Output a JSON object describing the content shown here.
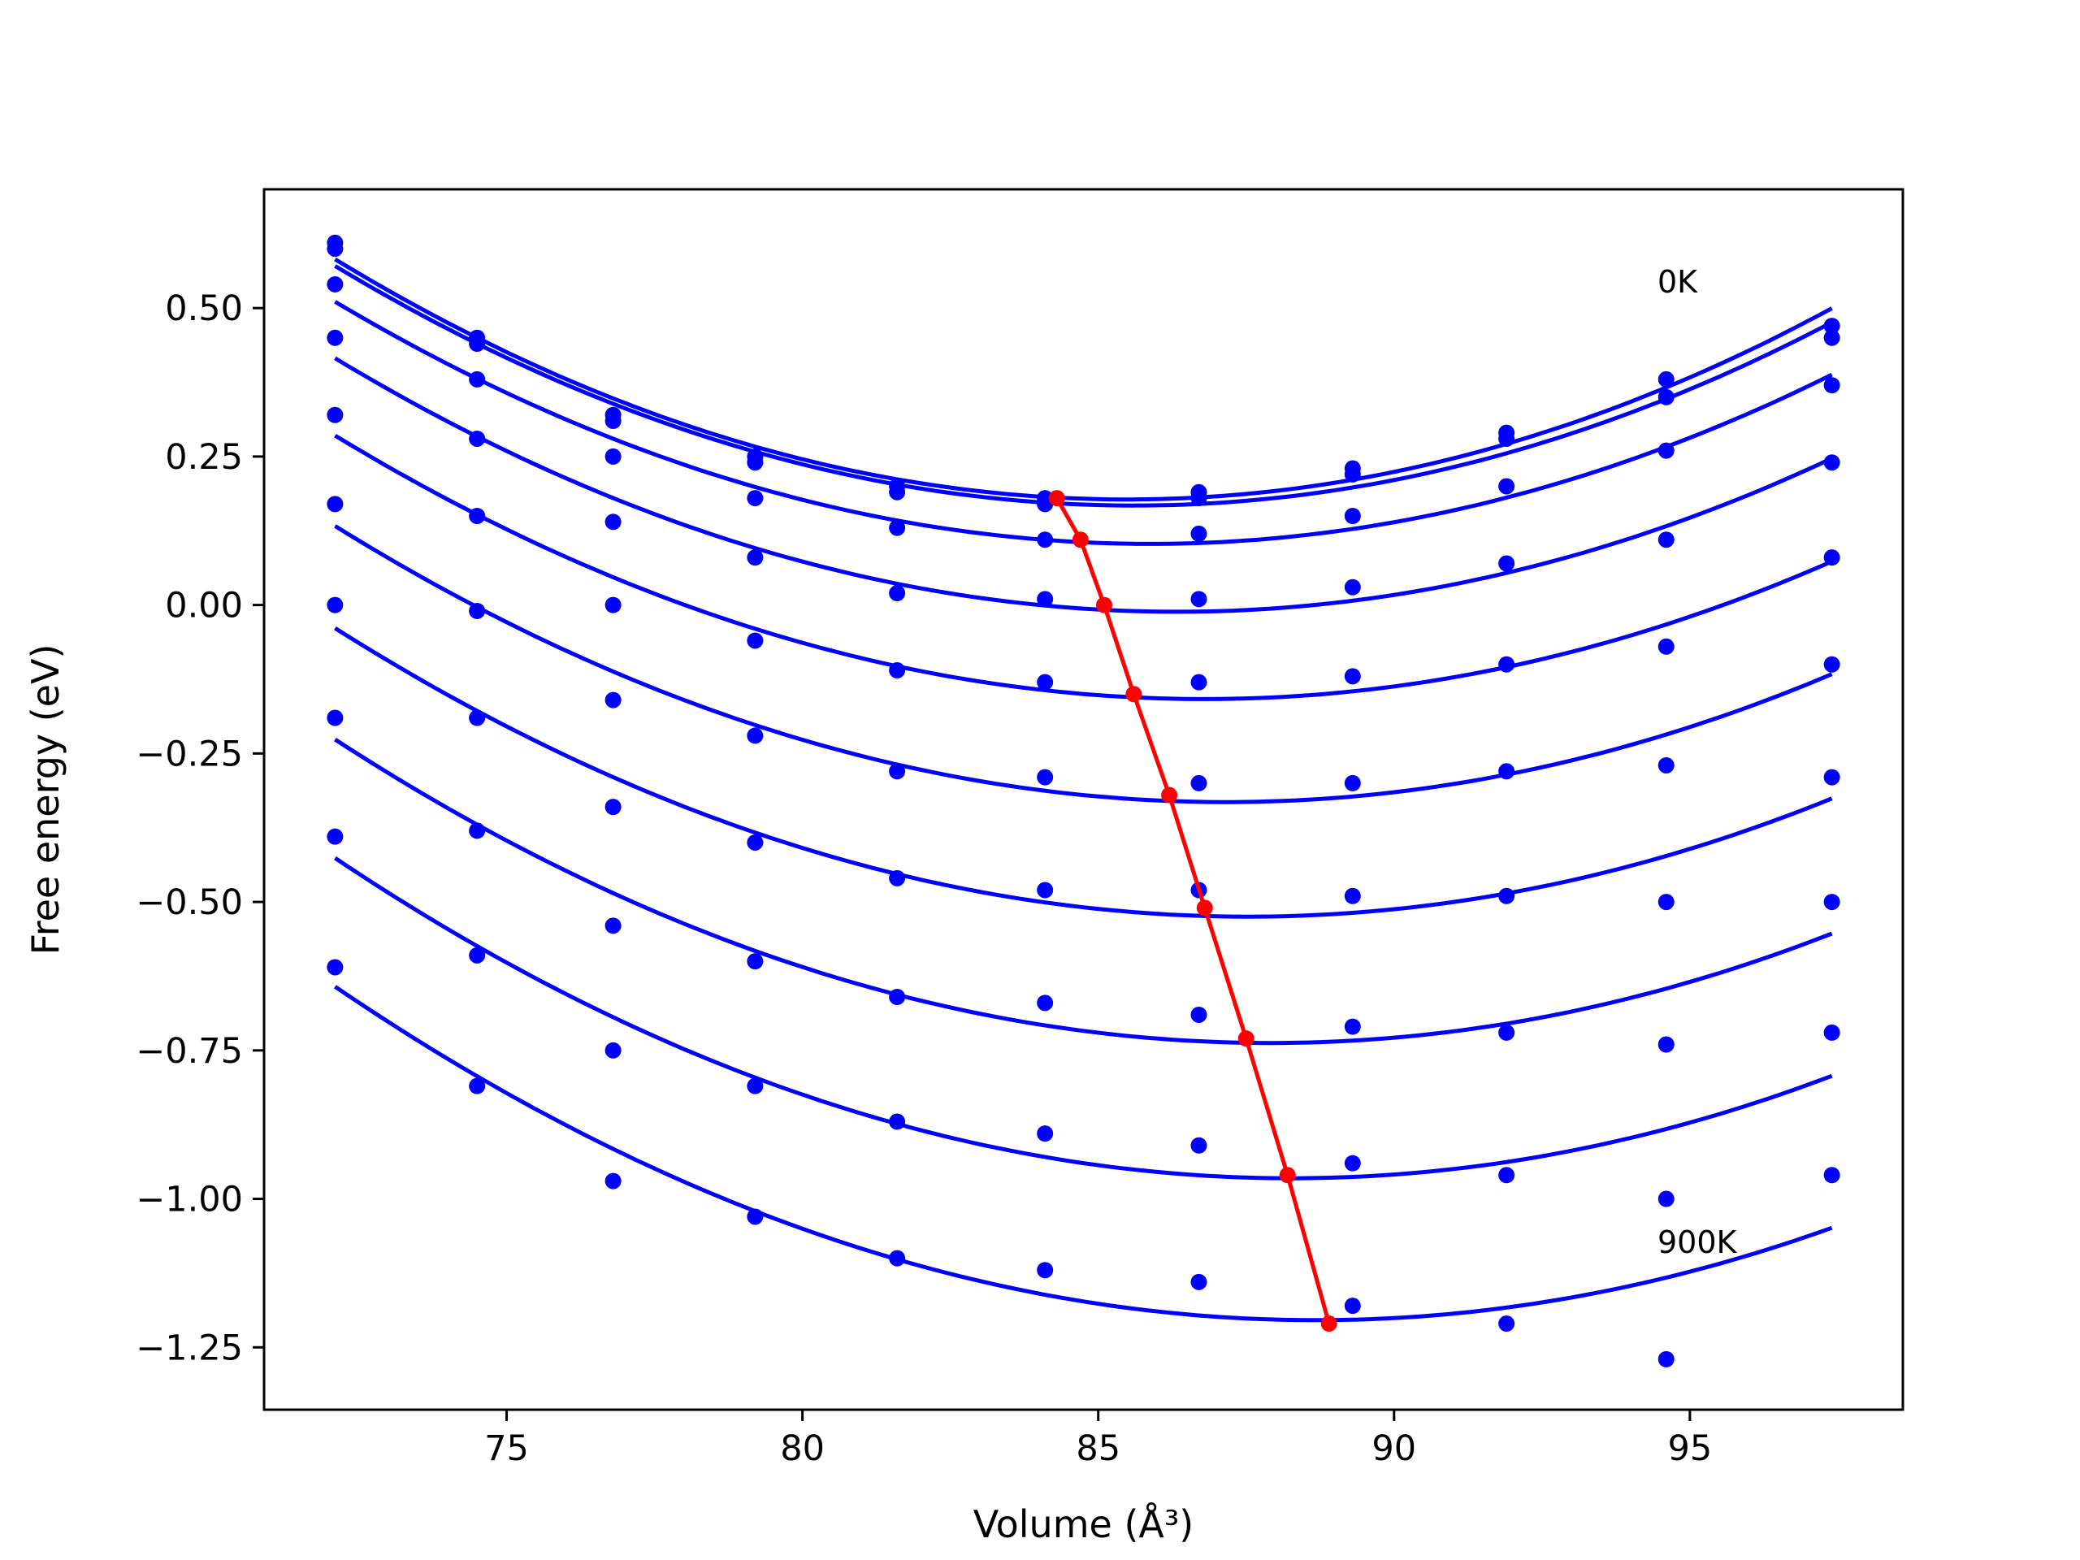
{
  "chart_data": {
    "type": "scatter",
    "title": "",
    "xlabel": "Volume (Å³)",
    "ylabel": "Free energy (eV)",
    "xlim": [
      70.9,
      98.6
    ],
    "ylim": [
      -1.355,
      0.7
    ],
    "xticks": [
      75,
      80,
      85,
      90,
      95
    ],
    "xtick_labels": [
      "75",
      "80",
      "85",
      "90",
      "95"
    ],
    "yticks": [
      0.5,
      0.25,
      0.0,
      -0.25,
      -0.5,
      -0.75,
      -1.0,
      -1.25
    ],
    "ytick_labels": [
      "0.50",
      "0.25",
      "0.00",
      "−0.25",
      "−0.50",
      "−0.75",
      "−1.00",
      "−1.25"
    ],
    "grid": false,
    "colors": {
      "points": "#0000ff",
      "fits": "#0000ff",
      "minimum": "#ff0000",
      "axes": "#000000"
    },
    "volumes": [
      72.1,
      74.5,
      76.8,
      79.2,
      81.6,
      84.1,
      86.7,
      89.3,
      91.9,
      94.6,
      97.4
    ],
    "series": [
      {
        "values": [
          0.61,
          0.45,
          0.32,
          0.25,
          0.2,
          0.18,
          0.19,
          0.23,
          0.29,
          0.38,
          0.47
        ]
      },
      {
        "values": [
          0.6,
          0.44,
          0.31,
          0.24,
          0.19,
          0.17,
          0.18,
          0.22,
          0.28,
          0.35,
          0.45
        ]
      },
      {
        "values": [
          0.54,
          0.38,
          0.25,
          0.18,
          0.13,
          0.11,
          0.12,
          0.15,
          0.2,
          0.26,
          0.37
        ]
      },
      {
        "values": [
          0.45,
          0.28,
          0.14,
          0.08,
          0.02,
          0.01,
          0.01,
          0.03,
          0.07,
          0.11,
          0.24
        ]
      },
      {
        "values": [
          0.32,
          0.15,
          0.0,
          -0.06,
          -0.11,
          -0.13,
          -0.13,
          -0.12,
          -0.1,
          -0.07,
          0.08
        ]
      },
      {
        "values": [
          0.17,
          -0.01,
          -0.16,
          -0.22,
          -0.28,
          -0.29,
          -0.3,
          -0.3,
          -0.28,
          -0.27,
          -0.1
        ]
      },
      {
        "values": [
          0.0,
          -0.19,
          -0.34,
          -0.4,
          -0.46,
          -0.48,
          -0.48,
          -0.49,
          -0.49,
          -0.5,
          -0.29
        ]
      },
      {
        "values": [
          -0.19,
          -0.38,
          -0.54,
          -0.6,
          -0.66,
          -0.67,
          -0.69,
          -0.71,
          -0.72,
          -0.74,
          -0.5
        ]
      },
      {
        "values": [
          -0.39,
          -0.59,
          -0.75,
          -0.81,
          -0.87,
          -0.89,
          -0.91,
          -0.94,
          -0.96,
          -1.0,
          -0.72
        ]
      },
      {
        "values": [
          -0.61,
          -0.81,
          -0.97,
          -1.03,
          -1.1,
          -1.12,
          -1.14,
          -1.18,
          -1.21,
          -1.27,
          -0.96
        ]
      }
    ],
    "minimum_path": {
      "x": [
        84.3,
        84.7,
        85.1,
        85.6,
        86.2,
        86.8,
        87.5,
        88.2,
        88.9
      ],
      "y": [
        0.18,
        0.11,
        0.0,
        -0.15,
        -0.32,
        -0.51,
        -0.73,
        -0.96,
        -1.21
      ]
    },
    "annotations": {
      "top": "0K",
      "bottom": "900K"
    }
  }
}
